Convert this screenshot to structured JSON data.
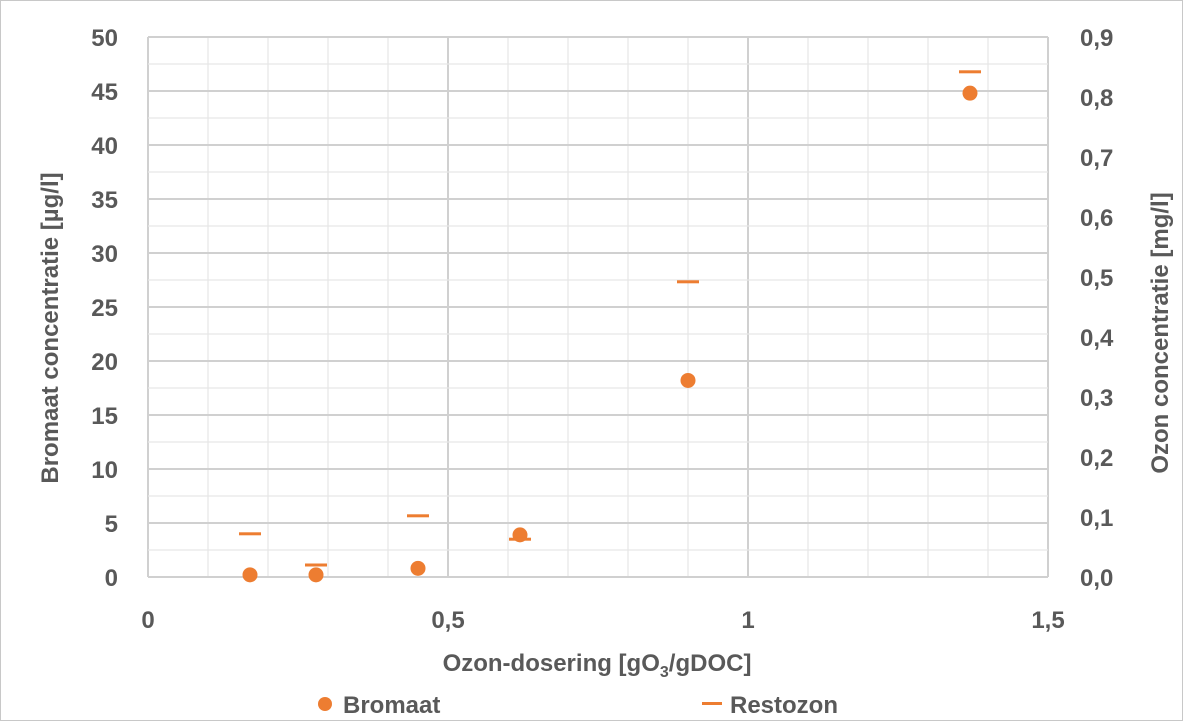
{
  "chart_data": {
    "type": "scatter",
    "xlabel_prefix": "Ozon-dosering [gO",
    "xlabel_sub": "3",
    "xlabel_suffix": "/gDOC]",
    "ylabel": "Bromaat concentratie [µg/l]",
    "y2label": "Ozon concentratie [mg/l]",
    "xlim": [
      0,
      1.5
    ],
    "ylim": [
      0,
      50
    ],
    "y2lim": [
      0,
      0.9
    ],
    "x_ticks": [
      "0",
      "0,5",
      "1",
      "1,5"
    ],
    "y_ticks": [
      "0",
      "5",
      "10",
      "15",
      "20",
      "25",
      "30",
      "35",
      "40",
      "45",
      "50"
    ],
    "y2_ticks": [
      "0,0",
      "0,1",
      "0,2",
      "0,3",
      "0,4",
      "0,5",
      "0,6",
      "0,7",
      "0,8",
      "0,9"
    ],
    "grid": true,
    "legend_position": "bottom",
    "series": [
      {
        "name": "Bromaat",
        "axis": "left",
        "marker": "circle",
        "color": "#ED7D31",
        "x": [
          0.17,
          0.28,
          0.45,
          0.62,
          0.9,
          1.37
        ],
        "y": [
          0.2,
          0.2,
          0.8,
          3.9,
          18.2,
          44.8
        ]
      },
      {
        "name": "Restozon",
        "axis": "right",
        "marker": "dash",
        "color": "#ED7D31",
        "x": [
          0.17,
          0.28,
          0.45,
          0.62,
          0.9,
          1.37
        ],
        "y": [
          0.072,
          0.02,
          0.102,
          0.063,
          0.492,
          0.842
        ]
      }
    ]
  }
}
